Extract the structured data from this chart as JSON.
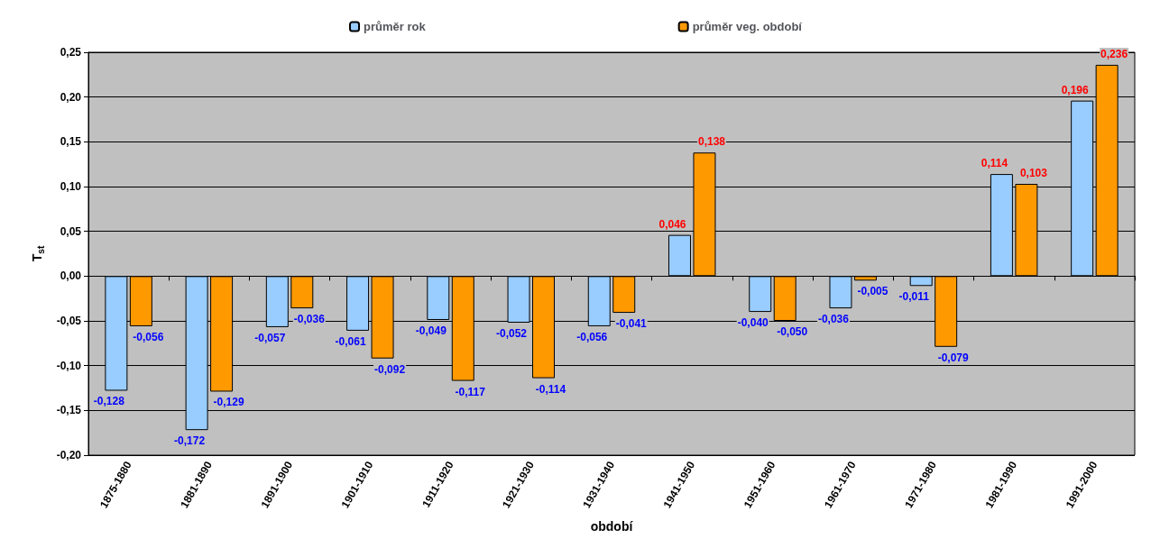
{
  "chart_data": {
    "type": "bar",
    "xlabel": "období",
    "ylabel": "T$_{st}$",
    "categories": [
      "1875-1880",
      "1881-1890",
      "1891-1900",
      "1901-1910",
      "1911-1920",
      "1921-1930",
      "1931-1940",
      "1941-1950",
      "1951-1960",
      "1961-1970",
      "1971-1980",
      "1981-1990",
      "1991-2000"
    ],
    "series": [
      {
        "name": "průměr rok",
        "color": "#99ccff",
        "values": [
          -0.128,
          -0.172,
          -0.057,
          -0.061,
          -0.049,
          -0.052,
          -0.056,
          0.046,
          -0.04,
          -0.036,
          -0.011,
          0.114,
          0.196
        ],
        "value_labels": [
          "-0,128",
          "-0,172",
          "-0,057",
          "-0,061",
          "-0,049",
          "-0,052",
          "-0,056",
          "0,046",
          "-0,040",
          "-0,036",
          "-0,011",
          "0,114",
          "0,196"
        ]
      },
      {
        "name": "průměr veg. období",
        "color": "#ff9900",
        "values": [
          -0.056,
          -0.129,
          -0.036,
          -0.092,
          -0.117,
          -0.114,
          -0.041,
          0.138,
          -0.05,
          -0.005,
          -0.079,
          0.103,
          0.236
        ],
        "value_labels": [
          "-0,056",
          "-0,129",
          "-0,036",
          "-0,092",
          "-0,117",
          "-0,114",
          "-0,041",
          "0,138",
          "-0,050",
          "-0,005",
          "-0,079",
          "0,103",
          "0,236"
        ]
      }
    ],
    "ylim": [
      -0.2,
      0.25
    ],
    "yticks": [
      {
        "value": -0.2,
        "label": "-0,20"
      },
      {
        "value": -0.15,
        "label": "-0,15"
      },
      {
        "value": -0.1,
        "label": "-0,10"
      },
      {
        "value": -0.05,
        "label": "-0,05"
      },
      {
        "value": 0,
        "label": "0,00"
      },
      {
        "value": 0.05,
        "label": "0,05"
      },
      {
        "value": 0.1,
        "label": "0,10"
      },
      {
        "value": 0.15,
        "label": "0,15"
      },
      {
        "value": 0.2,
        "label": "0,20"
      },
      {
        "value": 0.25,
        "label": "0,25"
      }
    ],
    "grid": "y",
    "legend": "top"
  }
}
